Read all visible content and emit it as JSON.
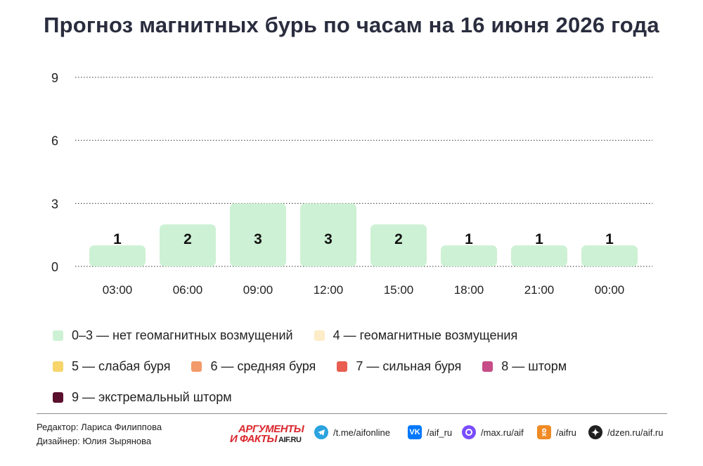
{
  "title": "Прогноз магнитных бурь по часам на 16 июня 2026 года",
  "chart_data": {
    "type": "bar",
    "categories": [
      "03:00",
      "06:00",
      "09:00",
      "12:00",
      "15:00",
      "18:00",
      "21:00",
      "00:00"
    ],
    "values": [
      1,
      2,
      3,
      3,
      2,
      1,
      1,
      1
    ],
    "ylim": [
      0,
      9
    ],
    "yticks": [
      "0",
      "3",
      "6",
      "9"
    ],
    "grid": true,
    "gridStyle": "dotted",
    "bar_color": "#cdf1d4",
    "legend_position": "bottom"
  },
  "legend": {
    "rows": [
      [
        {
          "label": "0–3 — нет геомагнитных возмущений",
          "color": "#cdf1d4"
        },
        {
          "label": "4 — геомагнитные возмущения",
          "color": "#fdecc8"
        }
      ],
      [
        {
          "label": "5 — слабая буря",
          "color": "#f7d56b"
        },
        {
          "label": "6 — средняя буря",
          "color": "#f29a6a"
        },
        {
          "label": "7 — сильная буря",
          "color": "#e85d50"
        },
        {
          "label": "8 — шторм",
          "color": "#c64d87"
        }
      ],
      [
        {
          "label": "9 — экстремальный шторм",
          "color": "#5a0f2c"
        }
      ]
    ]
  },
  "footer": {
    "editor": "Редактор: Лариса Филиппова",
    "designer": "Дизайнер: Юлия Зырянова",
    "logo_top": "АРГУМЕНТЫ",
    "logo_bottom": "И ФАКТЫ",
    "logo_sub": "AIF.RU",
    "social": [
      {
        "icon": "telegram-icon",
        "label": "/t.me/aifonline",
        "color": "#2aa3df"
      },
      {
        "icon": "vk-icon",
        "label": "/aif_ru",
        "color": "#0077ff"
      },
      {
        "icon": "max-icon",
        "label": "/max.ru/aif",
        "color": "#7a4dff"
      },
      {
        "icon": "odnoklassniki-icon",
        "label": "/aifru",
        "color": "#f08a24"
      },
      {
        "icon": "dzen-icon",
        "label": "/dzen.ru/aif.ru",
        "color": "#1f1f1f"
      }
    ]
  }
}
